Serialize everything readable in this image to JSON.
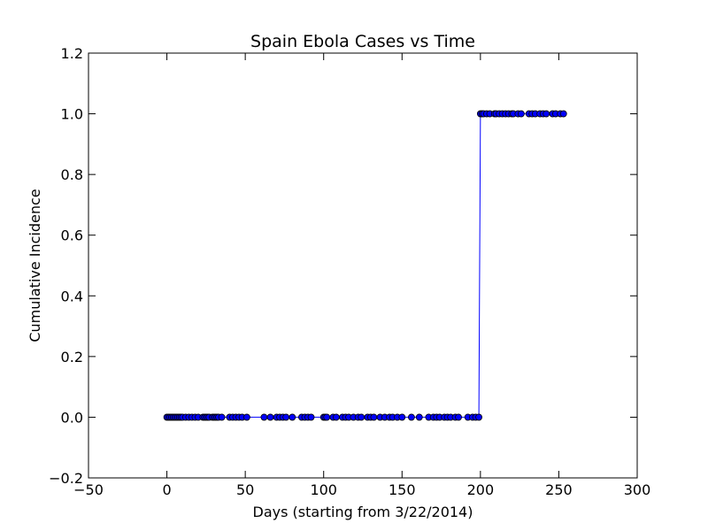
{
  "chart_data": {
    "type": "line",
    "title": "Spain Ebola Cases vs Time",
    "xlabel": "Days (starting from 3/22/2014)",
    "ylabel": "Cumulative Incidence",
    "xlim": [
      -50,
      300
    ],
    "ylim": [
      -0.2,
      1.2
    ],
    "xticks": [
      -50,
      0,
      50,
      100,
      150,
      200,
      250,
      300
    ],
    "yticks": [
      -0.2,
      0.0,
      0.2,
      0.4,
      0.6,
      0.8,
      1.0,
      1.2
    ],
    "xtick_labels": [
      "−50",
      "0",
      "50",
      "100",
      "150",
      "200",
      "250",
      "300"
    ],
    "ytick_labels": [
      "−0.2",
      "0.0",
      "0.2",
      "0.4",
      "0.6",
      "0.8",
      "1.0",
      "1.2"
    ],
    "grid": false,
    "series": [
      {
        "color": "#0000ff",
        "marker": "circle",
        "x": [
          0,
          1,
          2,
          3,
          4,
          5,
          6,
          7,
          8,
          9,
          10,
          12,
          14,
          16,
          18,
          20,
          23,
          24,
          25,
          26,
          27,
          29,
          30,
          31,
          32,
          33,
          35,
          40,
          42,
          44,
          46,
          48,
          51,
          62,
          66,
          70,
          72,
          74,
          76,
          80,
          86,
          88,
          90,
          92,
          100,
          101,
          102,
          106,
          108,
          112,
          114,
          116,
          119,
          122,
          124,
          128,
          130,
          132,
          136,
          139,
          142,
          144,
          147,
          150,
          156,
          161,
          167,
          170,
          172,
          174,
          177,
          179,
          181,
          184,
          186,
          192,
          195,
          197,
          199,
          200,
          201,
          202,
          204,
          206,
          209,
          210,
          212,
          214,
          216,
          218,
          220,
          221,
          224,
          226,
          231,
          233,
          235,
          238,
          240,
          242,
          246,
          248,
          251,
          253
        ],
        "y": [
          0,
          0,
          0,
          0,
          0,
          0,
          0,
          0,
          0,
          0,
          0,
          0,
          0,
          0,
          0,
          0,
          0,
          0,
          0,
          0,
          0,
          0,
          0,
          0,
          0,
          0,
          0,
          0,
          0,
          0,
          0,
          0,
          0,
          0,
          0,
          0,
          0,
          0,
          0,
          0,
          0,
          0,
          0,
          0,
          0,
          0,
          0,
          0,
          0,
          0,
          0,
          0,
          0,
          0,
          0,
          0,
          0,
          0,
          0,
          0,
          0,
          0,
          0,
          0,
          0,
          0,
          0,
          0,
          0,
          0,
          0,
          0,
          0,
          0,
          0,
          0,
          0,
          0,
          0,
          1,
          1,
          1,
          1,
          1,
          1,
          1,
          1,
          1,
          1,
          1,
          1,
          1,
          1,
          1,
          1,
          1,
          1,
          1,
          1,
          1,
          1,
          1,
          1,
          1
        ]
      }
    ]
  }
}
